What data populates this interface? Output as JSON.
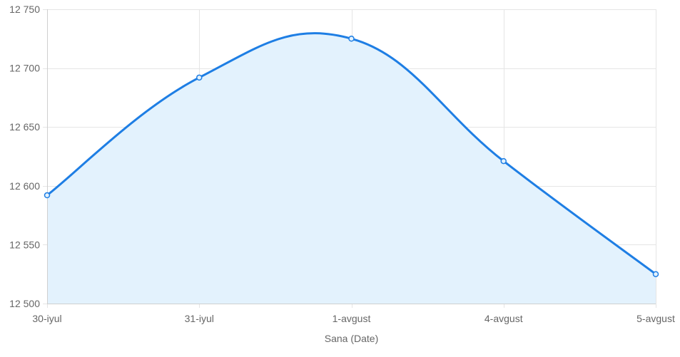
{
  "chart_data": {
    "type": "line",
    "title": "",
    "xlabel": "Sana (Date)",
    "ylabel": "",
    "categories": [
      "30-iyul",
      "31-iyul",
      "1-avgust",
      "4-avgust",
      "5-avgust"
    ],
    "series": [
      {
        "values": [
          12592,
          12692,
          12725,
          12621,
          12525
        ],
        "color": "#1e7ee4",
        "fill": "#e3f2fd"
      }
    ],
    "ylim": [
      12500,
      12750
    ],
    "yticks": [
      12500,
      12550,
      12600,
      12650,
      12700,
      12750
    ],
    "ytick_labels": [
      "12 500",
      "12 550",
      "12 600",
      "12 650",
      "12 700",
      "12 750"
    ],
    "grid": true,
    "legend": "none",
    "smooth": true,
    "area_fill": true
  }
}
